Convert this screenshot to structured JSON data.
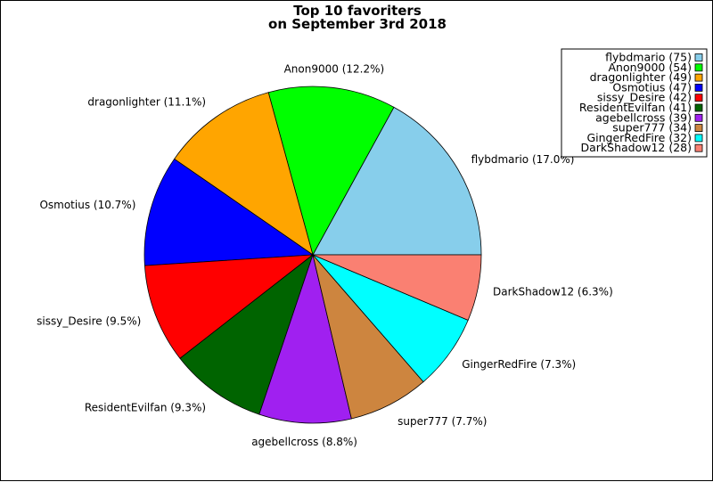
{
  "chart_data": {
    "type": "pie",
    "title": [
      "Top 10 favoriters",
      "on September 3rd 2018"
    ],
    "slices": [
      {
        "name": "flybdmario",
        "value": 75,
        "label": "flybdmario (17.0%)",
        "legend": "flybdmario (75)",
        "color": "#87ceeb"
      },
      {
        "name": "Anon9000",
        "value": 54,
        "label": "Anon9000 (12.2%)",
        "legend": "Anon9000 (54)",
        "color": "#00ff00"
      },
      {
        "name": "dragonlighter",
        "value": 49,
        "label": "dragonlighter (11.1%)",
        "legend": "dragonlighter (49)",
        "color": "#ffa500"
      },
      {
        "name": "Osmotius",
        "value": 47,
        "label": "Osmotius (10.7%)",
        "legend": "Osmotius (47)",
        "color": "#0000ff"
      },
      {
        "name": "sissy_Desire",
        "value": 42,
        "label": "sissy_Desire (9.5%)",
        "legend": "sissy_Desire (42)",
        "color": "#ff0000"
      },
      {
        "name": "ResidentEvilfan",
        "value": 41,
        "label": "ResidentEvilfan (9.3%)",
        "legend": "ResidentEvilfan (41)",
        "color": "#006400"
      },
      {
        "name": "agebellcross",
        "value": 39,
        "label": "agebellcross (8.8%)",
        "legend": "agebellcross (39)",
        "color": "#a020f0"
      },
      {
        "name": "super777",
        "value": 34,
        "label": "super777 (7.7%)",
        "legend": "super777 (34)",
        "color": "#cd853f"
      },
      {
        "name": "GingerRedFire",
        "value": 32,
        "label": "GingerRedFire (7.3%)",
        "legend": "GingerRedFire (32)",
        "color": "#00ffff"
      },
      {
        "name": "DarkShadow12",
        "value": 28,
        "label": "DarkShadow12 (6.3%)",
        "legend": "DarkShadow12 (28)",
        "color": "#fa8072"
      }
    ],
    "start_angle": "3 o'clock",
    "direction": "counterclockwise",
    "legend_position": "top-right"
  }
}
